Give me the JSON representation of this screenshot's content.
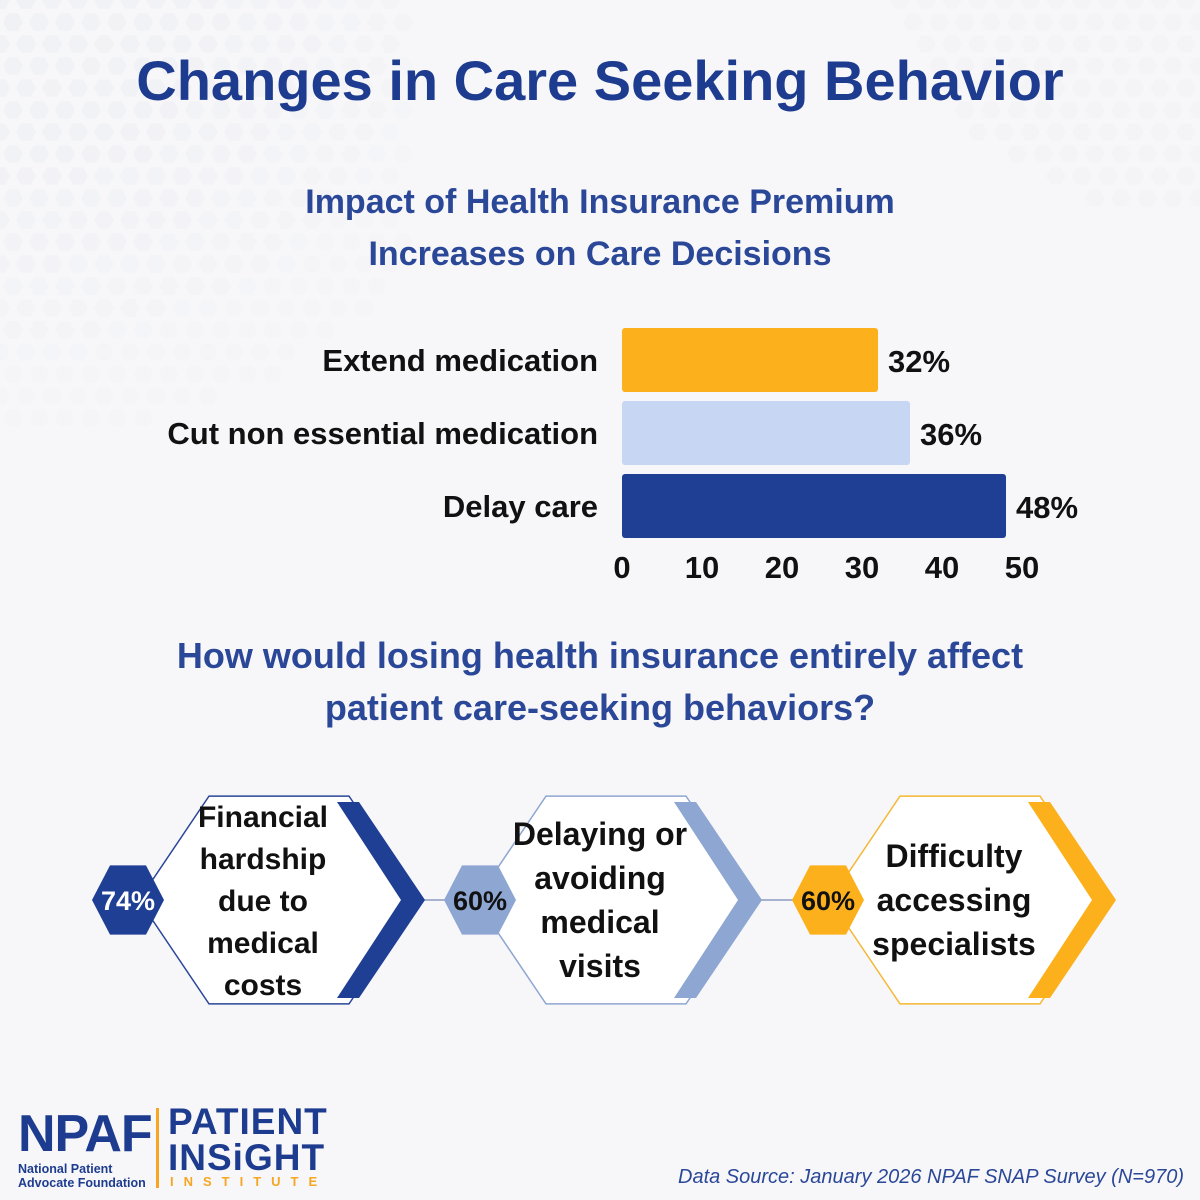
{
  "title": "Changes in Care Seeking Behavior",
  "subtitle": {
    "line1": "Impact of Health Insurance Premium",
    "line2": "Increases on Care Decisions"
  },
  "chart_data": {
    "type": "bar",
    "orientation": "horizontal",
    "categories": [
      "Extend medication",
      "Cut non essential medication",
      "Delay care"
    ],
    "values": [
      32,
      36,
      48
    ],
    "data_labels": [
      "32%",
      "36%",
      "48%"
    ],
    "colors": [
      "#fbb01c",
      "#c7d6f3",
      "#1f3f94"
    ],
    "xlim": [
      0,
      50
    ],
    "xticks": [
      0,
      10,
      20,
      30,
      40,
      50
    ],
    "grid": false
  },
  "question": {
    "line1": "How would losing health insurance entirely affect",
    "line2": "patient care-seeking behaviors?"
  },
  "impacts": [
    {
      "percent": "74%",
      "value": 74,
      "lines": [
        "Financial",
        "hardship",
        "due to",
        "medical",
        "costs"
      ],
      "color": "#1f3f94",
      "outline": "#2a4798"
    },
    {
      "percent": "60%",
      "value": 60,
      "lines": [
        "Delaying or",
        "avoiding",
        "medical",
        "visits"
      ],
      "color": "#8ea6d2",
      "outline": "#8ea6d2"
    },
    {
      "percent": "60%",
      "value": 60,
      "lines": [
        "Difficulty",
        "accessing",
        "specialists"
      ],
      "color": "#fbb01c",
      "outline": "#f5b733"
    }
  ],
  "logo": {
    "npaf": "NPAF",
    "org_line1": "National Patient",
    "org_line2": "Advocate Foundation",
    "pii_line1": "PATIENT",
    "pii_line2": "INSiGHT",
    "pii_line3": "INSTITUTE"
  },
  "source": "Data Source: January 2026 NPAF SNAP Survey (N=970)"
}
